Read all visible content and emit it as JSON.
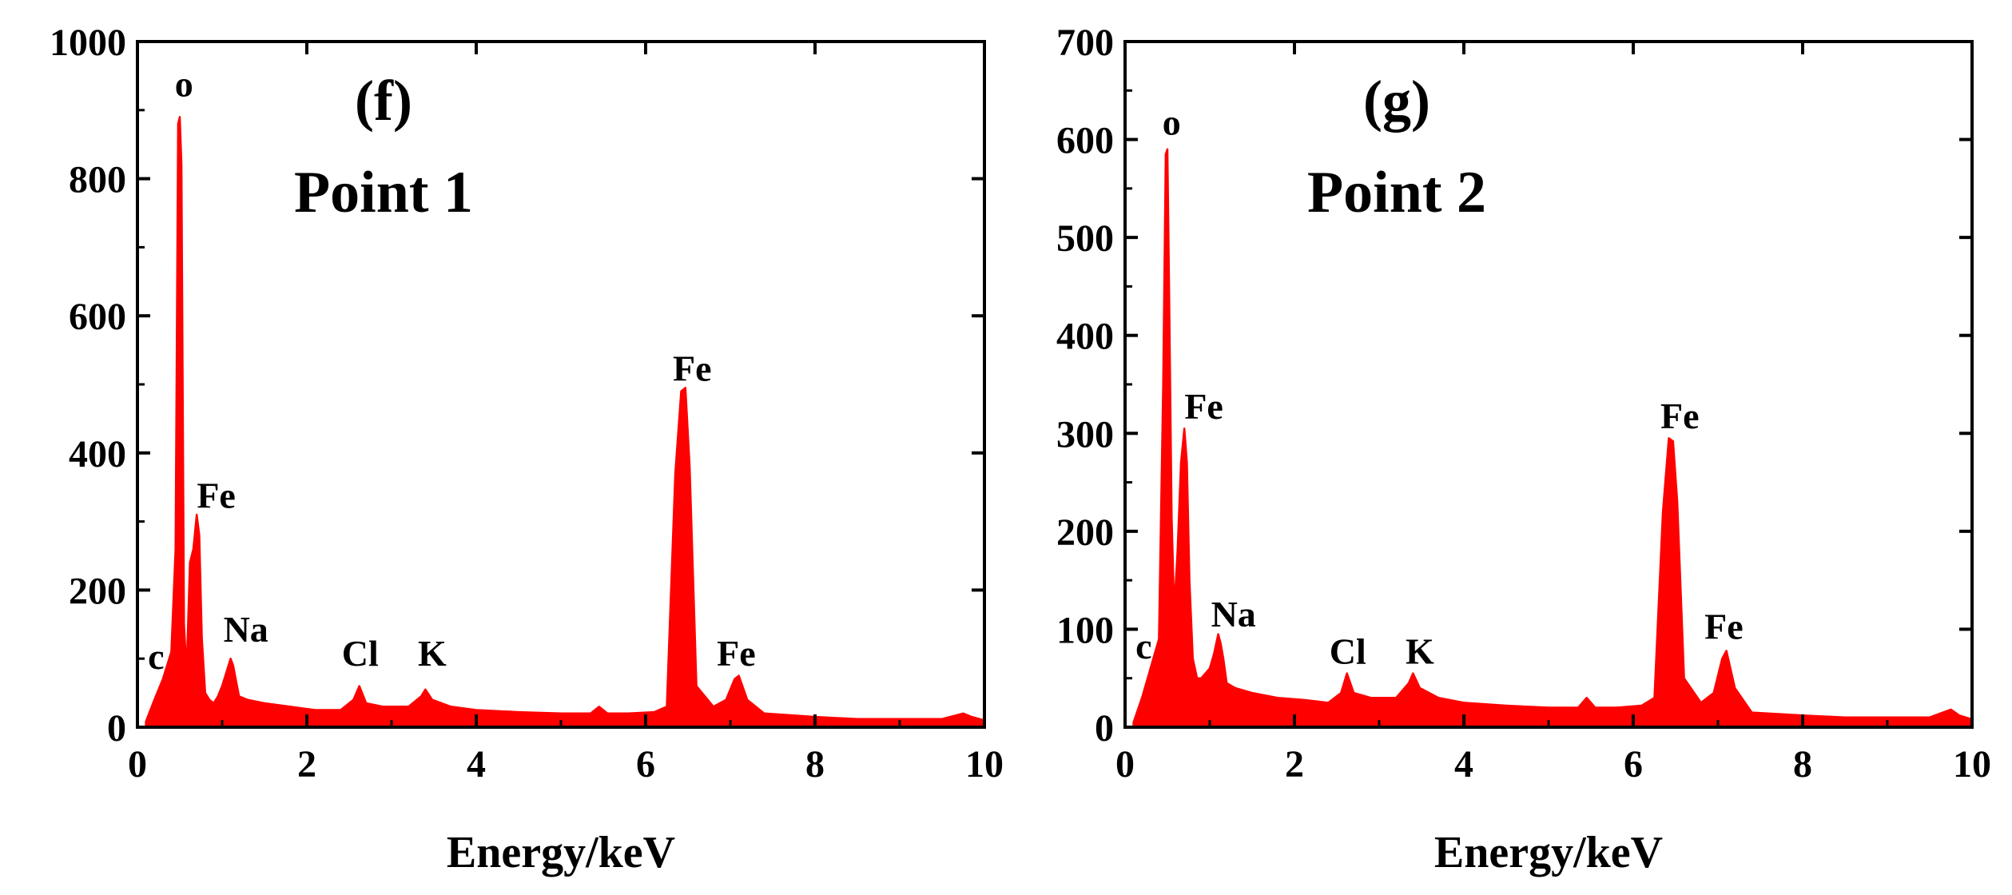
{
  "colors": {
    "spectrum": "#ff0000",
    "axis": "#000000",
    "background": "#ffffff"
  },
  "chart_data": [
    {
      "type": "area",
      "panel_label": "(f)",
      "title": "Point 1",
      "xlabel": "Energy/keV",
      "ylabel": "",
      "xlim": [
        0,
        10
      ],
      "ylim": [
        0,
        1000
      ],
      "x_ticks": [
        "0",
        "2",
        "4",
        "6",
        "8",
        "10"
      ],
      "y_ticks": [
        "0",
        "200",
        "400",
        "600",
        "800",
        "1000"
      ],
      "grid": false,
      "legend": "none",
      "series": [
        {
          "x": [
            0.1,
            0.2,
            0.3,
            0.4,
            0.45,
            0.48,
            0.5,
            0.52,
            0.55,
            0.58,
            0.62,
            0.66,
            0.7,
            0.73,
            0.76,
            0.8,
            0.85,
            0.9,
            0.95,
            1.0,
            1.05,
            1.1,
            1.13,
            1.16,
            1.2,
            1.3,
            1.5,
            1.8,
            2.1,
            2.4,
            2.55,
            2.62,
            2.7,
            2.9,
            3.2,
            3.35,
            3.4,
            3.48,
            3.7,
            4.0,
            4.5,
            5.0,
            5.35,
            5.45,
            5.55,
            5.8,
            6.1,
            6.25,
            6.35,
            6.42,
            6.47,
            6.52,
            6.6,
            6.8,
            6.95,
            7.05,
            7.1,
            7.2,
            7.4,
            8.0,
            8.5,
            9.0,
            9.5,
            9.75,
            9.85,
            10.0
          ],
          "y": [
            8,
            40,
            70,
            110,
            260,
            880,
            890,
            820,
            150,
            80,
            240,
            260,
            310,
            280,
            130,
            50,
            40,
            35,
            45,
            60,
            80,
            100,
            90,
            70,
            45,
            40,
            35,
            30,
            25,
            25,
            40,
            60,
            35,
            30,
            30,
            45,
            55,
            40,
            30,
            25,
            22,
            20,
            20,
            30,
            20,
            20,
            22,
            30,
            370,
            490,
            495,
            380,
            60,
            30,
            40,
            70,
            75,
            40,
            20,
            15,
            12,
            12,
            12,
            20,
            15,
            10
          ]
        }
      ],
      "annotations": [
        {
          "text": "c",
          "x": 0.22,
          "y": 85
        },
        {
          "text": "o",
          "x": 0.55,
          "y": 920
        },
        {
          "text": "Fe",
          "x": 0.93,
          "y": 320
        },
        {
          "text": "Na",
          "x": 1.28,
          "y": 125
        },
        {
          "text": "Cl",
          "x": 2.63,
          "y": 90
        },
        {
          "text": "K",
          "x": 3.48,
          "y": 90
        },
        {
          "text": "Fe",
          "x": 6.55,
          "y": 505
        },
        {
          "text": "Fe",
          "x": 7.07,
          "y": 90
        }
      ]
    },
    {
      "type": "area",
      "panel_label": "(g)",
      "title": "Point 2",
      "xlabel": "Energy/keV",
      "ylabel": "",
      "xlim": [
        0,
        10
      ],
      "ylim": [
        0,
        700
      ],
      "x_ticks": [
        "0",
        "2",
        "4",
        "6",
        "8",
        "10"
      ],
      "y_ticks": [
        "0",
        "100",
        "200",
        "300",
        "400",
        "500",
        "600",
        "700"
      ],
      "grid": false,
      "legend": "none",
      "series": [
        {
          "x": [
            0.1,
            0.2,
            0.3,
            0.4,
            0.45,
            0.48,
            0.5,
            0.52,
            0.55,
            0.58,
            0.62,
            0.66,
            0.7,
            0.73,
            0.76,
            0.8,
            0.85,
            0.9,
            0.95,
            1.0,
            1.05,
            1.1,
            1.13,
            1.16,
            1.2,
            1.3,
            1.5,
            1.8,
            2.1,
            2.4,
            2.55,
            2.62,
            2.7,
            2.9,
            3.2,
            3.35,
            3.4,
            3.48,
            3.7,
            4.0,
            4.5,
            5.0,
            5.35,
            5.45,
            5.55,
            5.8,
            6.1,
            6.25,
            6.35,
            6.42,
            6.47,
            6.52,
            6.6,
            6.8,
            6.95,
            7.05,
            7.1,
            7.2,
            7.4,
            8.0,
            8.5,
            9.0,
            9.5,
            9.75,
            9.85,
            10.0
          ],
          "y": [
            5,
            30,
            60,
            90,
            350,
            585,
            590,
            450,
            215,
            120,
            180,
            270,
            305,
            270,
            150,
            70,
            50,
            50,
            55,
            60,
            75,
            95,
            85,
            70,
            45,
            40,
            35,
            30,
            28,
            25,
            35,
            55,
            35,
            30,
            30,
            45,
            55,
            40,
            30,
            25,
            22,
            20,
            20,
            30,
            20,
            20,
            22,
            30,
            220,
            295,
            292,
            230,
            50,
            25,
            35,
            70,
            78,
            40,
            15,
            12,
            10,
            10,
            10,
            18,
            12,
            8
          ]
        }
      ],
      "annotations": [
        {
          "text": "c",
          "x": 0.22,
          "y": 70
        },
        {
          "text": "o",
          "x": 0.55,
          "y": 605
        },
        {
          "text": "Fe",
          "x": 0.93,
          "y": 315
        },
        {
          "text": "Na",
          "x": 1.28,
          "y": 103
        },
        {
          "text": "Cl",
          "x": 2.63,
          "y": 65
        },
        {
          "text": "K",
          "x": 3.48,
          "y": 65
        },
        {
          "text": "Fe",
          "x": 6.55,
          "y": 305
        },
        {
          "text": "Fe",
          "x": 7.07,
          "y": 90
        }
      ]
    }
  ]
}
